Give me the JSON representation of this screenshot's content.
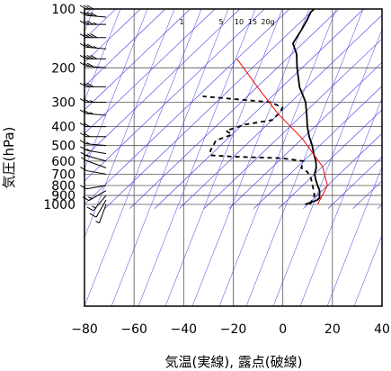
{
  "chart_data": {
    "type": "line",
    "subtype": "skew-T log-p thermodynamic diagram",
    "xlabel": "気温(実線), 露点(破線)",
    "ylabel": "気圧(hPa)",
    "x_ticks": [
      -80,
      -60,
      -40,
      -20,
      0,
      20,
      40
    ],
    "y_ticks": [
      100,
      200,
      300,
      400,
      500,
      600,
      700,
      800,
      900,
      1000
    ],
    "xlim": [
      -80,
      40
    ],
    "ylim": [
      1050,
      100
    ],
    "y_scale": "log",
    "mixing_ratio_labels": [
      "1",
      "5",
      "10",
      "15",
      "20g"
    ],
    "series": [
      {
        "key": "temperature",
        "style": "solid",
        "color": "#000000",
        "points": [
          [
            9,
            1000
          ],
          [
            12,
            950
          ],
          [
            12,
            925
          ],
          [
            11,
            900
          ],
          [
            9,
            850
          ],
          [
            6,
            800
          ],
          [
            3,
            750
          ],
          [
            0,
            700
          ],
          [
            -2,
            650
          ],
          [
            -5,
            600
          ],
          [
            -9,
            550
          ],
          [
            -13,
            500
          ],
          [
            -18,
            450
          ],
          [
            -23,
            400
          ],
          [
            -28,
            350
          ],
          [
            -34,
            300
          ],
          [
            -43,
            250
          ],
          [
            -52,
            200
          ],
          [
            -58,
            170
          ],
          [
            -64,
            150
          ],
          [
            -66,
            130
          ],
          [
            -68,
            115
          ],
          [
            -70,
            104
          ],
          [
            -70,
            100
          ]
        ]
      },
      {
        "key": "dewpoint",
        "style": "dashed",
        "color": "#000000",
        "points": [
          [
            11,
            1000
          ],
          [
            10,
            950
          ],
          [
            9,
            900
          ],
          [
            4,
            800
          ],
          [
            0,
            730
          ],
          [
            -4,
            680
          ],
          [
            -8,
            650
          ],
          [
            -10,
            600
          ],
          [
            -20,
            580
          ],
          [
            -40,
            570
          ],
          [
            -50,
            560
          ],
          [
            -52,
            530
          ],
          [
            -54,
            470
          ],
          [
            -50,
            440
          ],
          [
            -54,
            420
          ],
          [
            -49,
            390
          ],
          [
            -40,
            370
          ],
          [
            -40,
            340
          ],
          [
            -41,
            320
          ],
          [
            -48,
            300
          ],
          [
            -78,
            280
          ]
        ]
      },
      {
        "key": "reference",
        "style": "solid",
        "color": "#ff0000",
        "points": [
          [
            -80,
            180
          ],
          [
            -60,
            250
          ],
          [
            -40,
            345
          ],
          [
            -20,
            460
          ],
          [
            0,
            640
          ],
          [
            10,
            800
          ],
          [
            14,
            1000
          ]
        ]
      }
    ],
    "wind_barbs": [
      {
        "p": 100,
        "dir": 270,
        "kt": 30
      },
      {
        "p": 110,
        "dir": 275,
        "kt": 40
      },
      {
        "p": 120,
        "dir": 270,
        "kt": 35
      },
      {
        "p": 140,
        "dir": 270,
        "kt": 40
      },
      {
        "p": 160,
        "dir": 275,
        "kt": 35
      },
      {
        "p": 180,
        "dir": 270,
        "kt": 40
      },
      {
        "p": 200,
        "dir": 275,
        "kt": 30
      },
      {
        "p": 250,
        "dir": 270,
        "kt": 30
      },
      {
        "p": 300,
        "dir": 270,
        "kt": 25
      },
      {
        "p": 350,
        "dir": 275,
        "kt": 25
      },
      {
        "p": 400,
        "dir": 270,
        "kt": 20
      },
      {
        "p": 450,
        "dir": 270,
        "kt": 20
      },
      {
        "p": 500,
        "dir": 275,
        "kt": 15
      },
      {
        "p": 550,
        "dir": 280,
        "kt": 15
      },
      {
        "p": 600,
        "dir": 285,
        "kt": 15
      },
      {
        "p": 650,
        "dir": 290,
        "kt": 10
      },
      {
        "p": 700,
        "dir": 280,
        "kt": 10
      },
      {
        "p": 800,
        "dir": 260,
        "kt": 10
      },
      {
        "p": 850,
        "dir": 240,
        "kt": 15
      },
      {
        "p": 900,
        "dir": 220,
        "kt": 15
      },
      {
        "p": 950,
        "dir": 210,
        "kt": 10
      },
      {
        "p": 1000,
        "dir": 200,
        "kt": 5
      }
    ],
    "colors": {
      "grid": "#555555",
      "skew_lines": "#3a3ae6",
      "frame": "#000000"
    }
  }
}
